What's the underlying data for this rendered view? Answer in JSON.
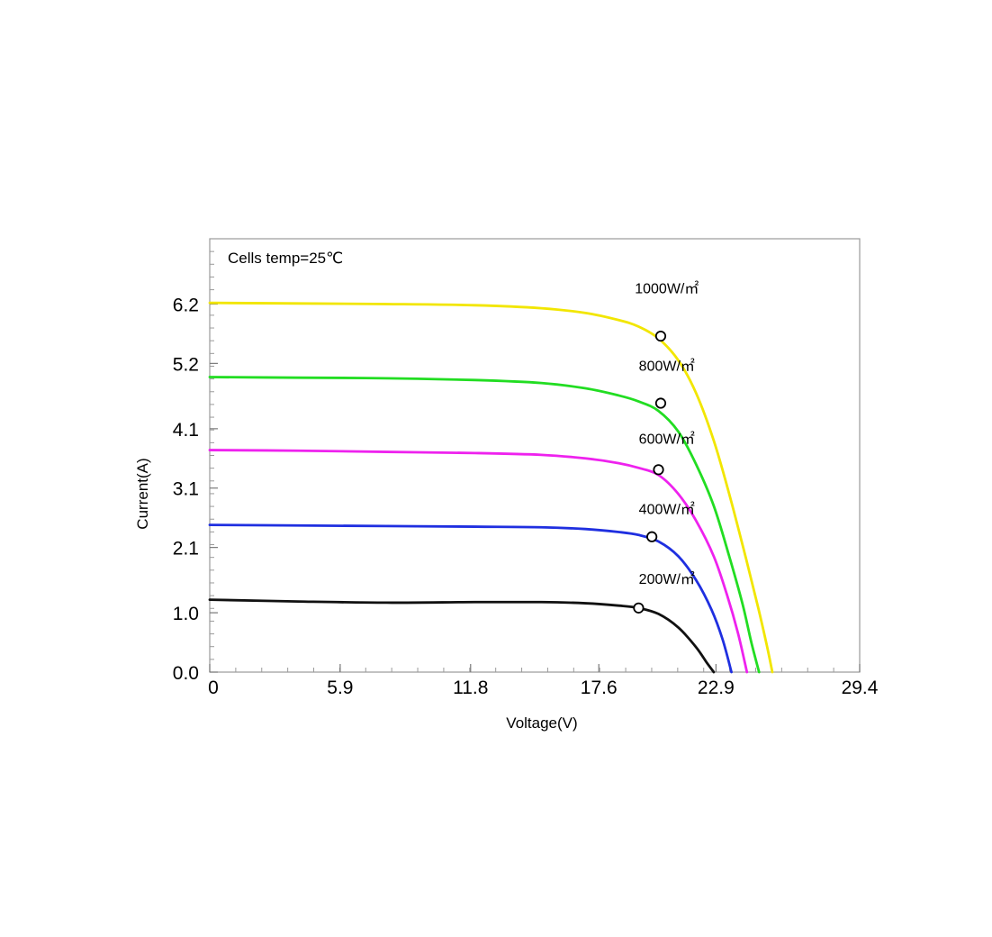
{
  "chart_data": {
    "type": "line",
    "title": "",
    "xlabel": "Voltage(V)",
    "ylabel": "Current(A)",
    "annotation": "Cells temp=25℃",
    "xlim": [
      0,
      29.4
    ],
    "ylim": [
      0,
      7.3
    ],
    "x_ticks": [
      0,
      5.9,
      11.8,
      17.6,
      22.9,
      29.4
    ],
    "x_tick_labels": [
      "0",
      "5.9",
      "11.8",
      "17.6",
      "22.9",
      "29.4"
    ],
    "y_ticks": [
      0.0,
      1.0,
      2.1,
      3.1,
      4.1,
      5.2,
      6.2
    ],
    "y_tick_labels": [
      "0.0",
      "1.0",
      "2.1",
      "3.1",
      "4.1",
      "5.2",
      "6.2"
    ],
    "grid": false,
    "series": [
      {
        "name": "1000W/㎡",
        "color": "#f2e600",
        "points": [
          [
            0,
            6.22
          ],
          [
            4,
            6.21
          ],
          [
            8,
            6.2
          ],
          [
            12,
            6.18
          ],
          [
            15,
            6.13
          ],
          [
            17,
            6.05
          ],
          [
            18.5,
            5.93
          ],
          [
            19.4,
            5.82
          ],
          [
            20.3,
            5.62
          ],
          [
            21.2,
            5.25
          ],
          [
            22.0,
            4.7
          ],
          [
            22.8,
            3.9
          ],
          [
            23.5,
            3.0
          ],
          [
            24.2,
            2.0
          ],
          [
            24.8,
            1.1
          ],
          [
            25.2,
            0.45
          ],
          [
            25.45,
            0.0
          ]
        ],
        "mpp": [
          20.4,
          5.66
        ],
        "label_position": [
          20.8,
          6.38
        ]
      },
      {
        "name": "800W/㎡",
        "color": "#22dd22",
        "points": [
          [
            0,
            4.97
          ],
          [
            4,
            4.96
          ],
          [
            8,
            4.95
          ],
          [
            12,
            4.92
          ],
          [
            15,
            4.87
          ],
          [
            17,
            4.78
          ],
          [
            18.5,
            4.66
          ],
          [
            19.4,
            4.56
          ],
          [
            20.3,
            4.4
          ],
          [
            21.2,
            4.05
          ],
          [
            22.0,
            3.5
          ],
          [
            22.8,
            2.8
          ],
          [
            23.5,
            1.95
          ],
          [
            24.1,
            1.15
          ],
          [
            24.5,
            0.5
          ],
          [
            24.85,
            0.0
          ]
        ],
        "mpp": [
          20.4,
          4.53
        ],
        "label_position": [
          20.8,
          5.08
        ]
      },
      {
        "name": "600W/㎡",
        "color": "#ee22ee",
        "points": [
          [
            0,
            3.74
          ],
          [
            4,
            3.73
          ],
          [
            8,
            3.71
          ],
          [
            12,
            3.69
          ],
          [
            15,
            3.66
          ],
          [
            17,
            3.6
          ],
          [
            18.5,
            3.52
          ],
          [
            19.4,
            3.44
          ],
          [
            20.3,
            3.32
          ],
          [
            21.2,
            3.0
          ],
          [
            22.0,
            2.55
          ],
          [
            22.8,
            1.95
          ],
          [
            23.4,
            1.3
          ],
          [
            23.9,
            0.65
          ],
          [
            24.3,
            0.0
          ]
        ],
        "mpp": [
          20.3,
          3.41
        ],
        "label_position": [
          20.8,
          3.85
        ]
      },
      {
        "name": "400W/㎡",
        "color": "#1f2fe0",
        "points": [
          [
            0,
            2.48
          ],
          [
            4,
            2.47
          ],
          [
            8,
            2.46
          ],
          [
            12,
            2.45
          ],
          [
            15,
            2.44
          ],
          [
            17,
            2.41
          ],
          [
            18.5,
            2.36
          ],
          [
            19.4,
            2.31
          ],
          [
            20.3,
            2.2
          ],
          [
            21.2,
            1.95
          ],
          [
            22.0,
            1.55
          ],
          [
            22.7,
            1.05
          ],
          [
            23.2,
            0.55
          ],
          [
            23.6,
            0.0
          ]
        ],
        "mpp": [
          20.0,
          2.28
        ],
        "label_position": [
          20.8,
          2.66
        ]
      },
      {
        "name": "200W/㎡",
        "color": "#111111",
        "points": [
          [
            0,
            1.22
          ],
          [
            4,
            1.19
          ],
          [
            8,
            1.17
          ],
          [
            12,
            1.18
          ],
          [
            15,
            1.18
          ],
          [
            17,
            1.16
          ],
          [
            18.5,
            1.12
          ],
          [
            19.4,
            1.08
          ],
          [
            20.3,
            0.98
          ],
          [
            21.2,
            0.75
          ],
          [
            22.0,
            0.42
          ],
          [
            22.5,
            0.15
          ],
          [
            22.8,
            0.0
          ]
        ],
        "mpp": [
          19.4,
          1.08
        ],
        "label_position": [
          20.8,
          1.49
        ]
      }
    ]
  }
}
